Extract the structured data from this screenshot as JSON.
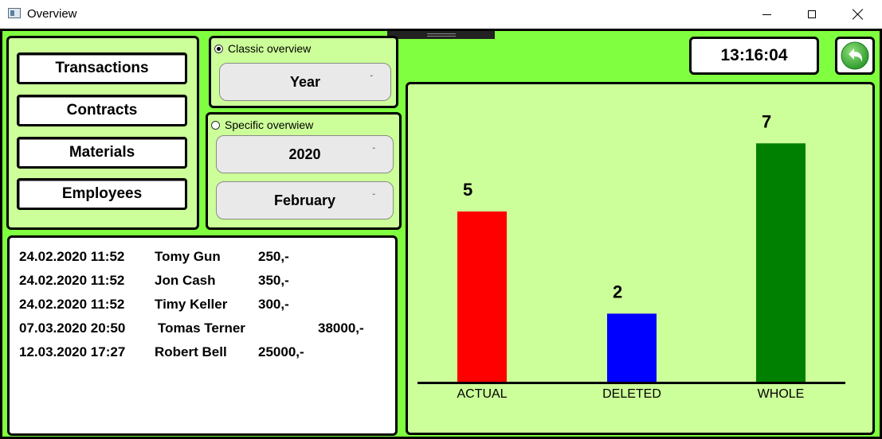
{
  "window": {
    "title": "Overview"
  },
  "nav": {
    "buttons": [
      {
        "label": "Transactions"
      },
      {
        "label": "Contracts"
      },
      {
        "label": "Materials"
      },
      {
        "label": "Employees"
      }
    ]
  },
  "classic": {
    "radio_label": "Classic overview",
    "checked": true,
    "period_value": "Year"
  },
  "specific": {
    "radio_label": "Specific overwiew",
    "checked": false,
    "year_value": "2020",
    "month_value": "February"
  },
  "clock": {
    "time": "13:16:04"
  },
  "transactions": [
    {
      "datetime": "24.02.2020 11:52",
      "name": "Tomy Gun",
      "amount": "250,-"
    },
    {
      "datetime": "24.02.2020 11:52",
      "name": "Jon Cash",
      "amount": "350,-"
    },
    {
      "datetime": "24.02.2020 11:52",
      "name": "Timy Keller",
      "amount": "300,-"
    },
    {
      "datetime": "07.03.2020 20:50",
      "name": "Tomas Terner",
      "amount": "38000,-"
    },
    {
      "datetime": "12.03.2020 17:27",
      "name": "Robert Bell",
      "amount": "25000,-"
    }
  ],
  "icons": {
    "back": "back-arrow-icon",
    "window_icon": "app-window-icon"
  },
  "colors": {
    "background": "#80ff40",
    "panel": "#ccff99",
    "actual": "#ff0000",
    "deleted": "#0000ff",
    "whole": "#008000"
  },
  "chart_data": {
    "type": "bar",
    "categories": [
      "ACTUAL",
      "DELETED",
      "WHOLE"
    ],
    "values": [
      5,
      2,
      7
    ],
    "data_labels": [
      "5",
      "2",
      "7"
    ],
    "bar_colors": [
      "#ff0000",
      "#0000ff",
      "#008000"
    ],
    "title": "",
    "xlabel": "",
    "ylabel": "",
    "ylim": [
      0,
      7.8
    ],
    "grid": false,
    "legend": "none"
  }
}
